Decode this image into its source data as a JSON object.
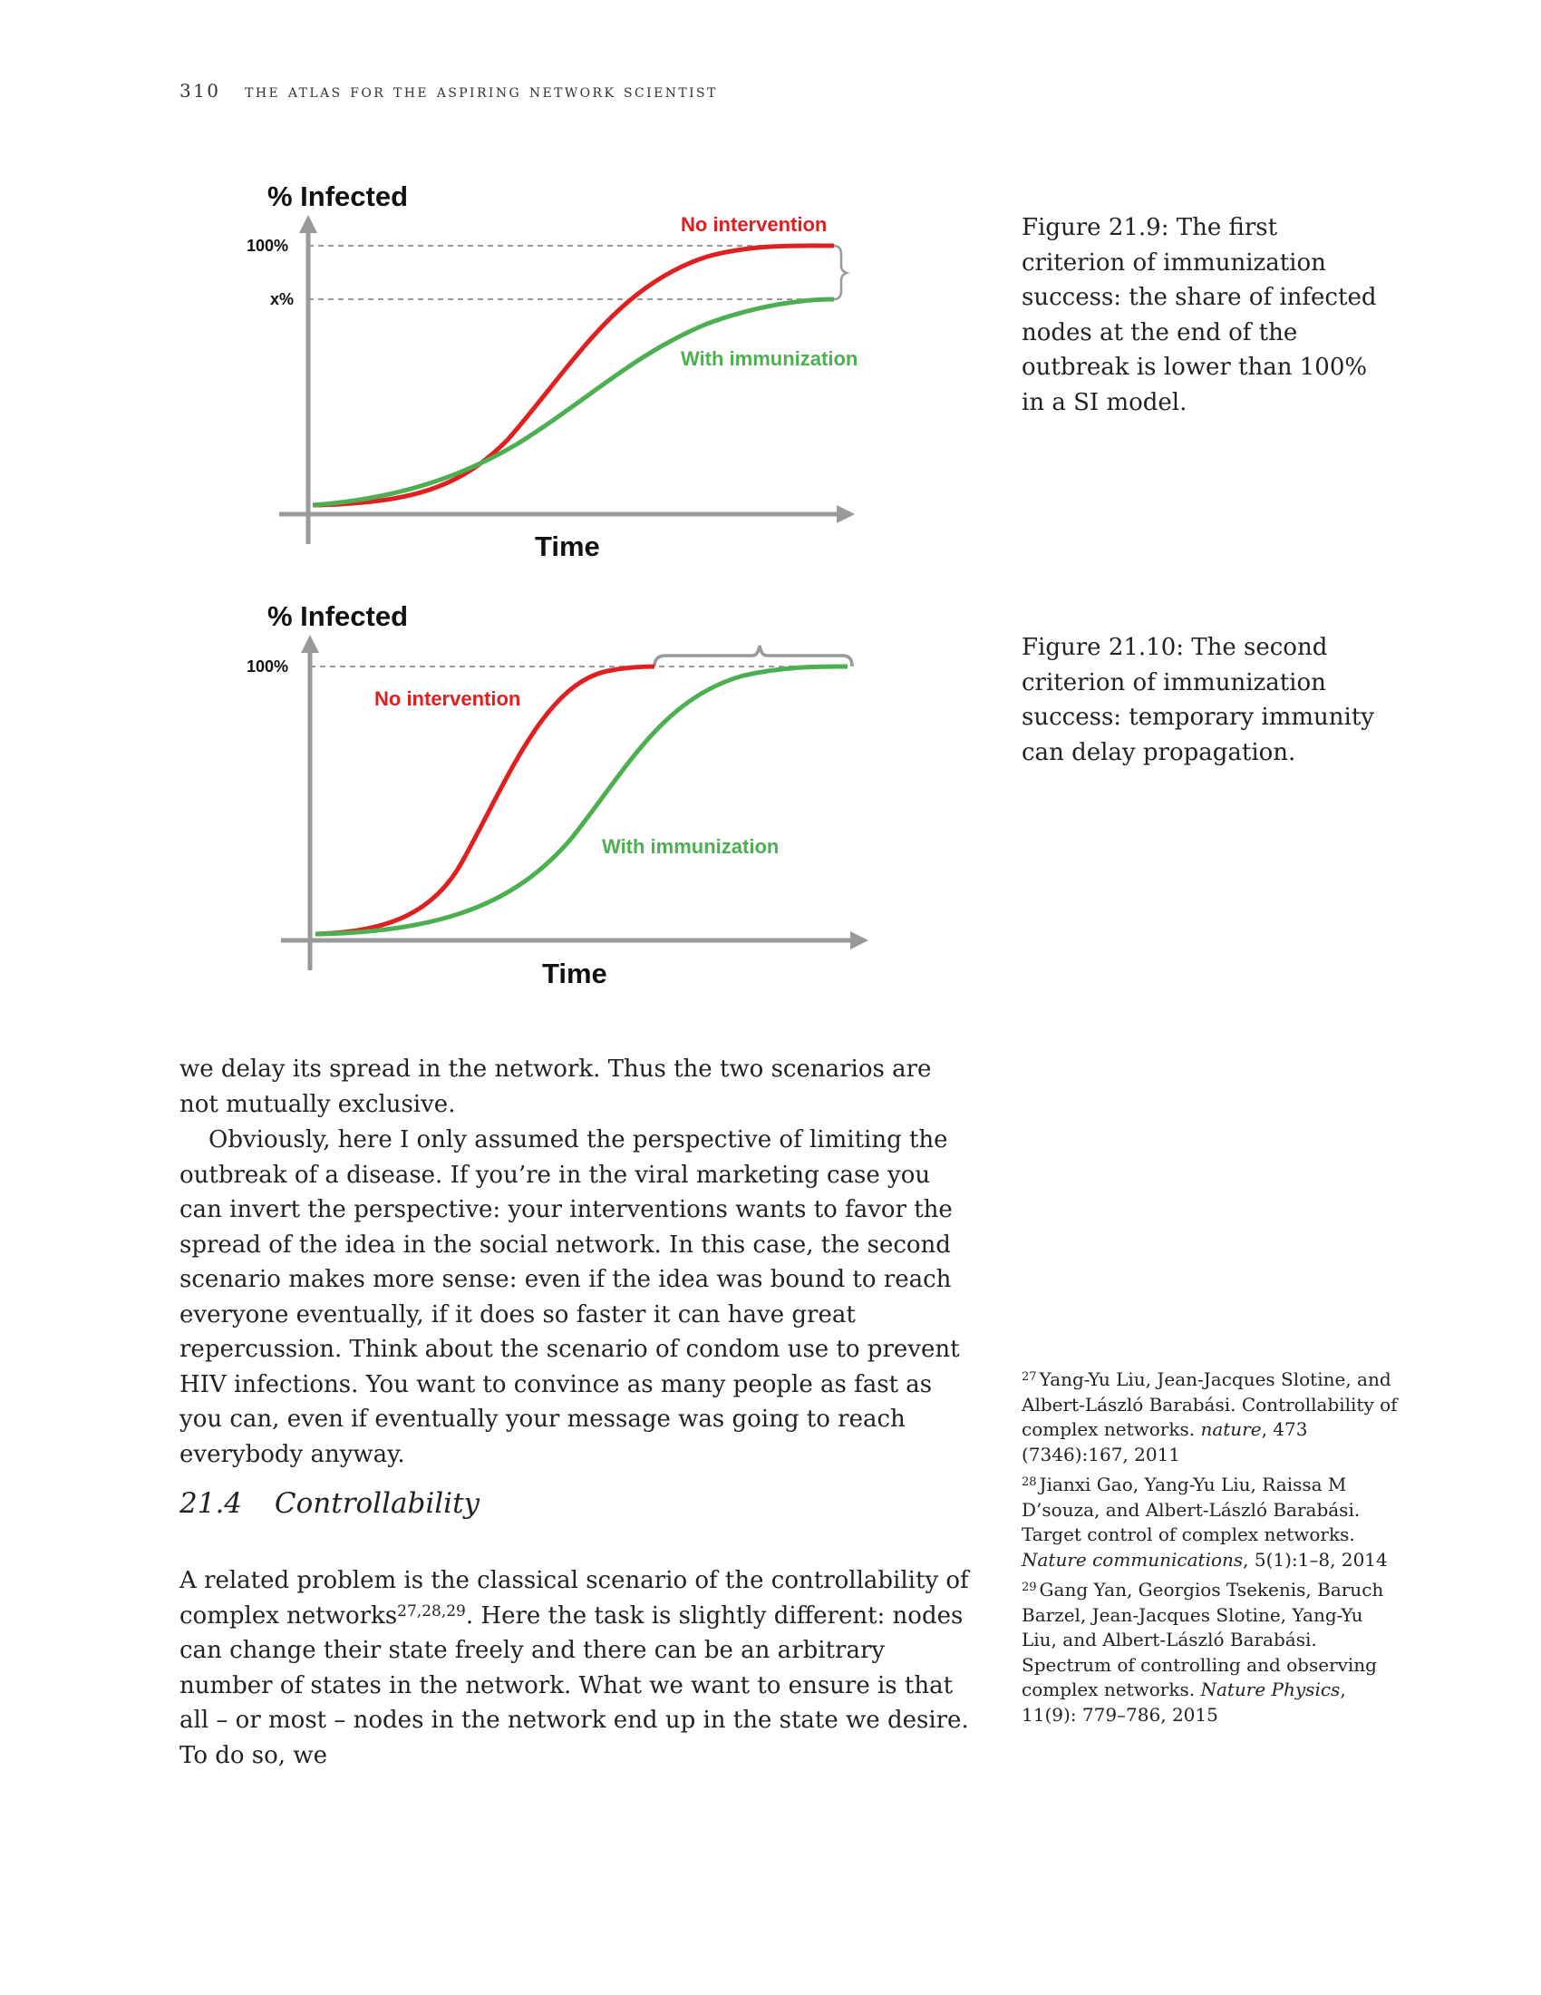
{
  "header": {
    "page_number": "310",
    "book_title": "THE ATLAS FOR THE ASPIRING NETWORK SCIENTIST"
  },
  "figures": [
    {
      "caption": "Figure 21.9: The first criterion of immunization success: the share of infected nodes at the end of the outbreak is lower than 100% in a SI model.",
      "chart_data": {
        "type": "line",
        "ylabel": "% Infected",
        "xlabel": "Time",
        "y_ticks": [
          "100%",
          "x%"
        ],
        "series": [
          {
            "name": "No intervention",
            "color": "#e02020"
          },
          {
            "name": "With immunization",
            "color": "#4caf50"
          }
        ],
        "grid": false
      }
    },
    {
      "caption": "Figure 21.10: The second criterion of immunization success: temporary immunity can delay propagation.",
      "chart_data": {
        "type": "line",
        "ylabel": "% Infected",
        "xlabel": "Time",
        "y_ticks": [
          "100%"
        ],
        "series": [
          {
            "name": "No intervention",
            "color": "#e02020"
          },
          {
            "name": "With immunization",
            "color": "#4caf50"
          }
        ],
        "grid": false
      }
    }
  ],
  "body": {
    "para1": "we delay its spread in the network. Thus the two scenarios are not mutually exclusive.",
    "para2": "Obviously, here I only assumed the perspective of limiting the outbreak of a disease. If you’re in the viral marketing case you can invert the perspective: your interventions wants to favor the spread of the idea in the social network. In this case, the second scenario makes more sense: even if the idea was bound to reach everyone eventually, if it does so faster it can have great repercussion. Think about the scenario of condom use to prevent HIV infections. You want to convince as many people as fast as you can, even if eventually your message was going to reach everybody anyway.",
    "section_number": "21.4",
    "section_title": "Controllability",
    "para3_before": "A related problem is the classical scenario of the controllability of complex networks",
    "para3_cite": "27,28,29",
    "para3_after": ". Here the task is slightly different: nodes can change their state freely and there can be an arbitrary number of states in the network. What we want to ensure is that all – or most – nodes in the network end up in the state we desire. To do so, we"
  },
  "footnotes": [
    {
      "num": "27",
      "text": "Yang-Yu Liu, Jean-Jacques Slotine, and Albert-László Barabási. Controllability of complex networks.",
      "venue": "nature",
      "rest": ", 473 (7346):167, 2011"
    },
    {
      "num": "28",
      "text": "Jianxi Gao, Yang-Yu Liu, Raissa M D’souza, and Albert-László Barabási. Target control of complex networks.",
      "venue": "Nature communications",
      "rest": ", 5(1):1–8, 2014"
    },
    {
      "num": "29",
      "text": "Gang Yan, Georgios Tsekenis, Baruch Barzel, Jean-Jacques Slotine, Yang-Yu Liu, and Albert-László Barabási. Spectrum of controlling and observing complex networks.",
      "venue": "Nature Physics",
      "rest": ", 11(9): 779–786, 2015"
    }
  ]
}
